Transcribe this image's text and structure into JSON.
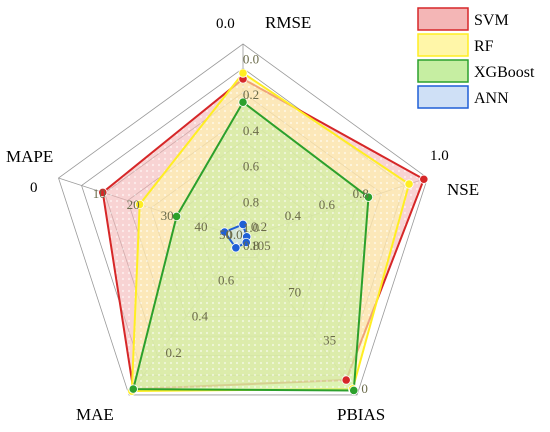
{
  "chart_data": {
    "type": "radar",
    "axes": [
      {
        "name": "RMSE",
        "ticks": [
          "0.0",
          "0.2",
          "0.4",
          "0.6",
          "0.8",
          "1.0"
        ],
        "range": [
          1.0,
          0.0
        ],
        "outer_label": "0.0"
      },
      {
        "name": "NSE",
        "ticks": [
          "0.0",
          "0.2",
          "0.4",
          "0.6",
          "0.8"
        ],
        "range": [
          0.0,
          1.0
        ],
        "outer_label": "1.0"
      },
      {
        "name": "PBIAS",
        "ticks": [
          "105",
          "70",
          "35",
          "0"
        ],
        "range": [
          105,
          0
        ],
        "outer_label": ""
      },
      {
        "name": "MAE",
        "ticks": [
          "0.8",
          "0.6",
          "0.4",
          "0.2"
        ],
        "range": [
          0.8,
          0.0
        ],
        "outer_label": ""
      },
      {
        "name": "MAPE",
        "ticks": [
          "50",
          "40",
          "30",
          "20",
          "10"
        ],
        "range": [
          50,
          0
        ],
        "outer_label": "0"
      }
    ],
    "series": [
      {
        "name": "SVM",
        "color": "#d62728",
        "fill": "#f4b6b6",
        "values": [
          0.18,
          0.98,
          10,
          0.03,
          12
        ]
      },
      {
        "name": "RF",
        "color": "#ffee22",
        "fill": "#fff6a8",
        "values": [
          0.15,
          0.9,
          4,
          0.02,
          22
        ]
      },
      {
        "name": "XGBoost",
        "color": "#2ca02c",
        "fill": "#c6eea2",
        "values": [
          0.3,
          0.68,
          3,
          0.03,
          32
        ]
      },
      {
        "name": "ANN",
        "color": "#1f5fd6",
        "fill": "#cfe0f6",
        "values": [
          0.93,
          0.02,
          102,
          0.75,
          45
        ]
      }
    ],
    "legend_position": "top-right",
    "grid": true
  }
}
